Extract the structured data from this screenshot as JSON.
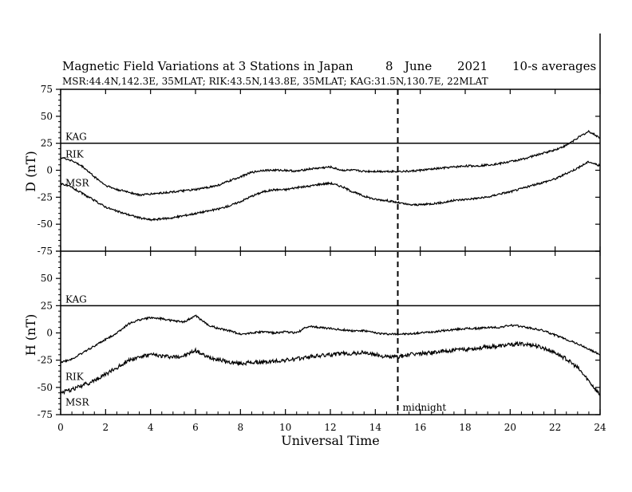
{
  "chart_data": [
    {
      "type": "line",
      "panel": "D",
      "title": "Magnetic Field Variations at 3 Stations in Japan",
      "title_date": [
        "8",
        "June",
        "2021"
      ],
      "title_note": "10-s averages",
      "subtitle": "MSR:44.4N,142.3E, 35MLAT;  RIK:43.5N,143.8E, 35MLAT;  KAG:31.5N,130.7E, 22MLAT",
      "ylabel": "D (nT)",
      "ylim": [
        -75,
        75
      ],
      "yticks": [
        "75",
        "50",
        "25",
        "0",
        "-25",
        "-50",
        "-75"
      ],
      "x": [
        0,
        0.5,
        1,
        1.5,
        2,
        2.5,
        3,
        3.5,
        4,
        4.5,
        5,
        5.5,
        6,
        6.5,
        7,
        7.5,
        8,
        8.5,
        9,
        9.5,
        10,
        10.5,
        11,
        11.5,
        12,
        12.5,
        13,
        13.5,
        14,
        14.5,
        15,
        15.5,
        16,
        16.5,
        17,
        17.5,
        18,
        18.5,
        19,
        19.5,
        20,
        20.5,
        21,
        21.5,
        22,
        22.5,
        23,
        23.5,
        24
      ],
      "series": [
        {
          "name": "KAG",
          "values": [
            25,
            25,
            25,
            25,
            25,
            25,
            25,
            25,
            25,
            25,
            25,
            25,
            25,
            25,
            25,
            25,
            25,
            25,
            25,
            25,
            25,
            25,
            25,
            25,
            25,
            25,
            25,
            25,
            25,
            25,
            25,
            25,
            25,
            25,
            25,
            25,
            25,
            25,
            25,
            25,
            25,
            25,
            25,
            25,
            25,
            25,
            25,
            25,
            25
          ]
        },
        {
          "name": "RIK",
          "values": [
            12,
            9,
            3,
            -6,
            -14,
            -18,
            -20,
            -23,
            -22,
            -21,
            -20,
            -19,
            -18,
            -16,
            -14,
            -10,
            -6,
            -2,
            0,
            0,
            0,
            -1,
            1,
            2,
            3,
            0,
            0,
            -1,
            -1,
            -1,
            -1,
            -1,
            0,
            1,
            2,
            3,
            4,
            4,
            5,
            6,
            8,
            10,
            13,
            16,
            19,
            23,
            30,
            36,
            30
          ]
        },
        {
          "name": "MSR",
          "values": [
            -12,
            -16,
            -22,
            -28,
            -34,
            -38,
            -41,
            -44,
            -46,
            -45,
            -44,
            -42,
            -40,
            -38,
            -36,
            -33,
            -29,
            -24,
            -20,
            -18,
            -18,
            -16,
            -15,
            -13,
            -12,
            -15,
            -20,
            -24,
            -27,
            -28,
            -30,
            -32,
            -32,
            -31,
            -30,
            -28,
            -27,
            -26,
            -25,
            -22,
            -20,
            -17,
            -14,
            -11,
            -8,
            -3,
            2,
            8,
            4
          ]
        }
      ]
    },
    {
      "type": "line",
      "panel": "H",
      "ylabel": "H (nT)",
      "xlabel": "Universal Time",
      "ylim": [
        -75,
        75
      ],
      "yticks": [
        "75",
        "50",
        "25",
        "0",
        "-25",
        "-50",
        "-75"
      ],
      "xlim": [
        0,
        24
      ],
      "xticks": [
        "0",
        "2",
        "4",
        "6",
        "8",
        "10",
        "12",
        "14",
        "16",
        "18",
        "20",
        "22",
        "24"
      ],
      "x": [
        0,
        0.5,
        1,
        1.5,
        2,
        2.5,
        3,
        3.5,
        4,
        4.5,
        5,
        5.5,
        6,
        6.5,
        7,
        7.5,
        8,
        8.5,
        9,
        9.5,
        10,
        10.5,
        11,
        11.5,
        12,
        12.5,
        13,
        13.5,
        14,
        14.5,
        15,
        15.5,
        16,
        16.5,
        17,
        17.5,
        18,
        18.5,
        19,
        19.5,
        20,
        20.5,
        21,
        21.5,
        22,
        22.5,
        23,
        23.5,
        24
      ],
      "series": [
        {
          "name": "KAG",
          "values": [
            25,
            25,
            25,
            25,
            25,
            25,
            25,
            25,
            25,
            25,
            25,
            25,
            25,
            25,
            25,
            25,
            25,
            25,
            25,
            25,
            25,
            25,
            25,
            25,
            25,
            25,
            25,
            25,
            25,
            25,
            25,
            25,
            25,
            25,
            25,
            25,
            25,
            25,
            25,
            25,
            25,
            25,
            25,
            25,
            25,
            25,
            25,
            25,
            25
          ]
        },
        {
          "name": "RIK",
          "values": [
            -27,
            -24,
            -18,
            -12,
            -6,
            0,
            8,
            12,
            14,
            13,
            11,
            10,
            16,
            8,
            4,
            2,
            -1,
            0,
            1,
            0,
            1,
            0,
            6,
            5,
            4,
            3,
            2,
            2,
            0,
            -1,
            -1,
            -1,
            0,
            1,
            2,
            3,
            4,
            4,
            5,
            5,
            7,
            6,
            4,
            2,
            -2,
            -6,
            -10,
            -15,
            -20
          ]
        },
        {
          "name": "MSR",
          "values": [
            -55,
            -52,
            -48,
            -44,
            -38,
            -32,
            -25,
            -22,
            -20,
            -21,
            -22,
            -21,
            -16,
            -22,
            -24,
            -27,
            -28,
            -27,
            -27,
            -26,
            -25,
            -24,
            -22,
            -21,
            -20,
            -19,
            -19,
            -18,
            -20,
            -22,
            -22,
            -20,
            -19,
            -18,
            -17,
            -16,
            -15,
            -14,
            -13,
            -12,
            -11,
            -10,
            -11,
            -14,
            -18,
            -24,
            -32,
            -44,
            -57
          ]
        }
      ],
      "annotation": {
        "x": 15,
        "label": "midnight",
        "style": "dashed"
      }
    }
  ]
}
